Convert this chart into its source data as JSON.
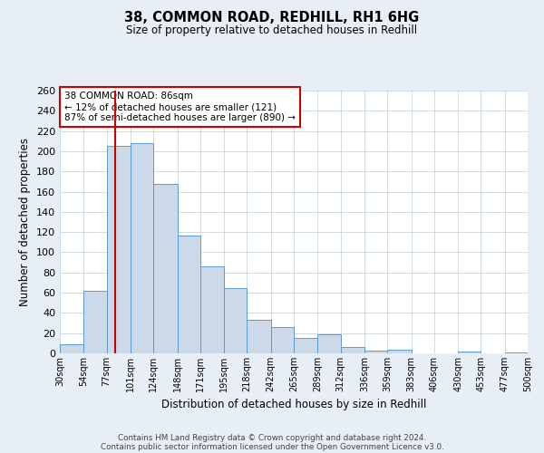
{
  "title": "38, COMMON ROAD, REDHILL, RH1 6HG",
  "subtitle": "Size of property relative to detached houses in Redhill",
  "xlabel": "Distribution of detached houses by size in Redhill",
  "ylabel": "Number of detached properties",
  "bin_edges": [
    30,
    54,
    77,
    101,
    124,
    148,
    171,
    195,
    218,
    242,
    265,
    289,
    312,
    336,
    359,
    383,
    406,
    430,
    453,
    477,
    500
  ],
  "bar_heights": [
    9,
    62,
    205,
    208,
    168,
    117,
    86,
    65,
    33,
    26,
    15,
    19,
    6,
    3,
    4,
    0,
    0,
    2,
    0,
    1
  ],
  "bar_facecolor": "#ccd9e8",
  "bar_edgecolor": "#5b9bd5",
  "vline_color": "#cc0000",
  "vline_x": 86,
  "annotation_text": "38 COMMON ROAD: 86sqm\n← 12% of detached houses are smaller (121)\n87% of semi-detached houses are larger (890) →",
  "annotation_box_edgecolor": "#cc0000",
  "ylim": [
    0,
    260
  ],
  "yticks": [
    0,
    20,
    40,
    60,
    80,
    100,
    120,
    140,
    160,
    180,
    200,
    220,
    240,
    260
  ],
  "tick_labels": [
    "30sqm",
    "54sqm",
    "77sqm",
    "101sqm",
    "124sqm",
    "148sqm",
    "171sqm",
    "195sqm",
    "218sqm",
    "242sqm",
    "265sqm",
    "289sqm",
    "312sqm",
    "336sqm",
    "359sqm",
    "383sqm",
    "406sqm",
    "430sqm",
    "453sqm",
    "477sqm",
    "500sqm"
  ],
  "footer_line1": "Contains HM Land Registry data © Crown copyright and database right 2024.",
  "footer_line2": "Contains public sector information licensed under the Open Government Licence v3.0.",
  "background_color": "#e8eef5",
  "plot_background_color": "#ffffff",
  "grid_color": "#c8d4e0"
}
